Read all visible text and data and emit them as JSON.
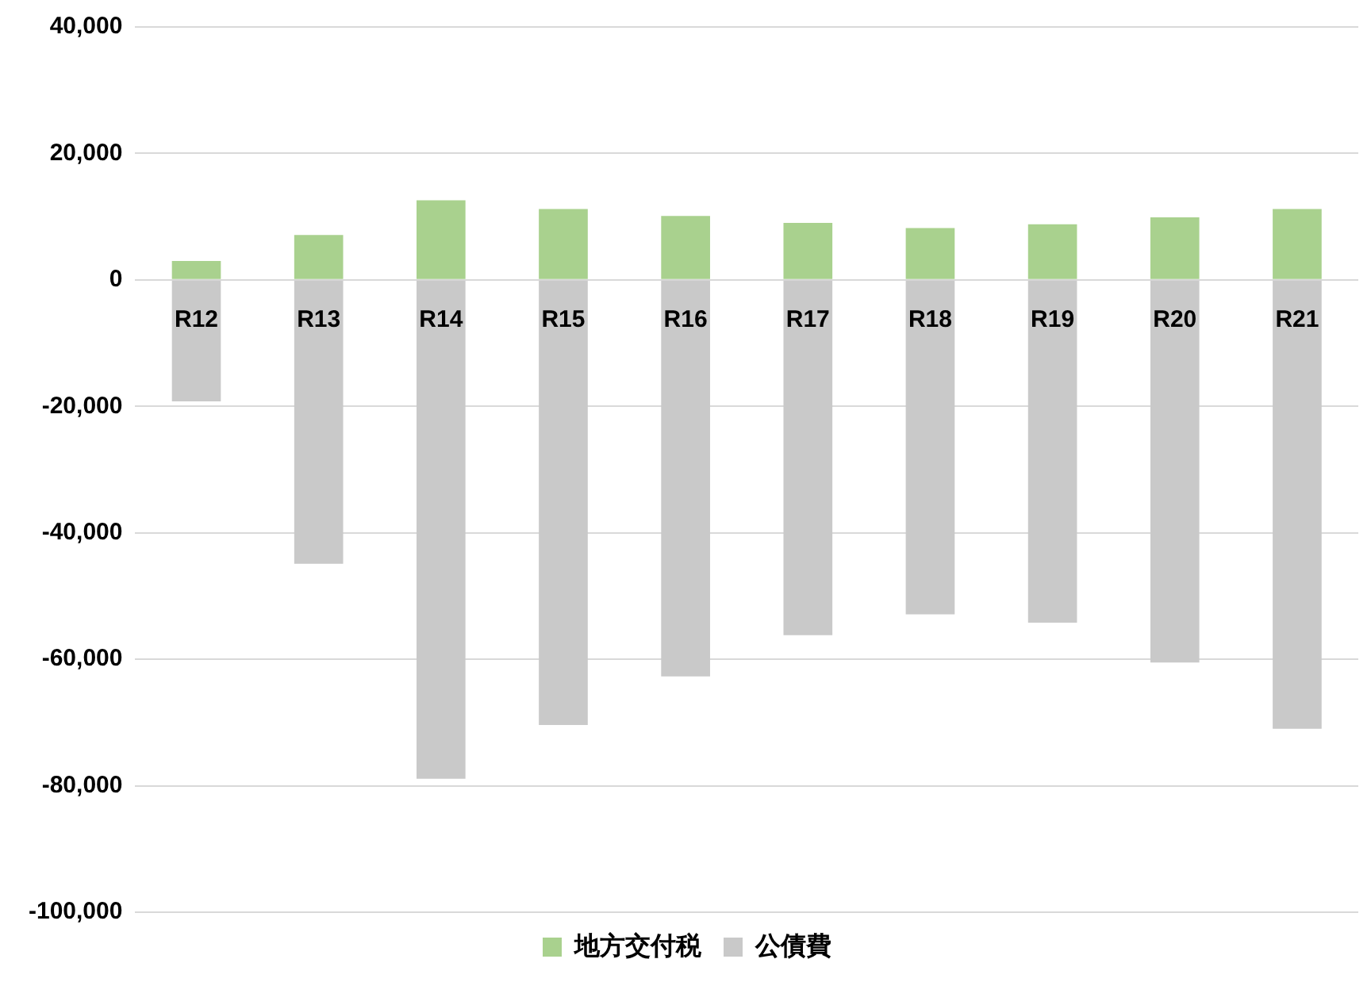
{
  "chart_data": {
    "type": "bar",
    "stacked": true,
    "categories": [
      "R12",
      "R13",
      "R14",
      "R15",
      "R16",
      "R17",
      "R18",
      "R19",
      "R20",
      "R21"
    ],
    "series": [
      {
        "name": "地方交付税",
        "color": "#a9d18e",
        "values": [
          3000,
          7100,
          12600,
          11200,
          10100,
          9000,
          8200,
          8800,
          9900,
          11200
        ]
      },
      {
        "name": "公債費",
        "color": "#c9c9c9",
        "values": [
          -19200,
          -44900,
          -78900,
          -70400,
          -62700,
          -56200,
          -52900,
          -54200,
          -60500,
          -71000
        ]
      }
    ],
    "ylim": [
      -100000,
      40000
    ],
    "yticks": [
      {
        "value": -100000,
        "label": "-100,000"
      },
      {
        "value": -80000,
        "label": "-80,000"
      },
      {
        "value": -60000,
        "label": "-60,000"
      },
      {
        "value": -40000,
        "label": "-40,000"
      },
      {
        "value": -20000,
        "label": "-20,000"
      },
      0,
      {
        "value": 20000,
        "label": "20,000"
      },
      {
        "value": 40000,
        "label": "40,000"
      }
    ],
    "grid": "y",
    "legend": "bottom"
  }
}
